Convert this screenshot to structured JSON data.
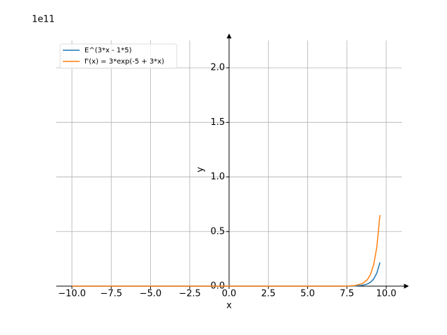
{
  "chart_data": {
    "type": "line",
    "offset_text": "1e11",
    "xlabel": "x",
    "ylabel": "y",
    "x": [
      -10,
      -5,
      0,
      5,
      7,
      7.5,
      8,
      8.5,
      8.8,
      9,
      9.2,
      9.4,
      9.6
    ],
    "series": [
      {
        "name": "E^(3*x - 1*5)",
        "color": "#1f77b4",
        "values": [
          0,
          0,
          0,
          0,
          8.89e-05,
          0.000398,
          0.001785,
          0.008,
          0.0197,
          0.0359,
          0.0653,
          0.119,
          0.217
        ]
      },
      {
        "name": "f'(x) = 3*exp(-5 + 3*x)",
        "color": "#ff7f0e",
        "values": [
          0,
          0,
          0,
          0,
          0.000267,
          0.00119,
          0.00536,
          0.024,
          0.0591,
          0.1076,
          0.196,
          0.357,
          0.651
        ]
      }
    ],
    "xlim": [
      -11,
      11
    ],
    "ylim": [
      0,
      2.25
    ],
    "xticks": [
      {
        "value": -10,
        "label": "−10.0"
      },
      {
        "value": -7.5,
        "label": "−7.5"
      },
      {
        "value": -5,
        "label": "−5.0"
      },
      {
        "value": -2.5,
        "label": "−2.5"
      },
      {
        "value": 0,
        "label": "0.0"
      },
      2.5,
      {
        "value": 5,
        "label": "5.0"
      },
      7.5,
      {
        "value": 10,
        "label": "10.0"
      }
    ],
    "yticks": [
      {
        "value": 0,
        "label": "0.0"
      },
      0.5,
      {
        "value": 1,
        "label": "1.0"
      },
      1.5,
      {
        "value": 2,
        "label": "2.0"
      }
    ],
    "grid": true,
    "legend": "upper left"
  }
}
